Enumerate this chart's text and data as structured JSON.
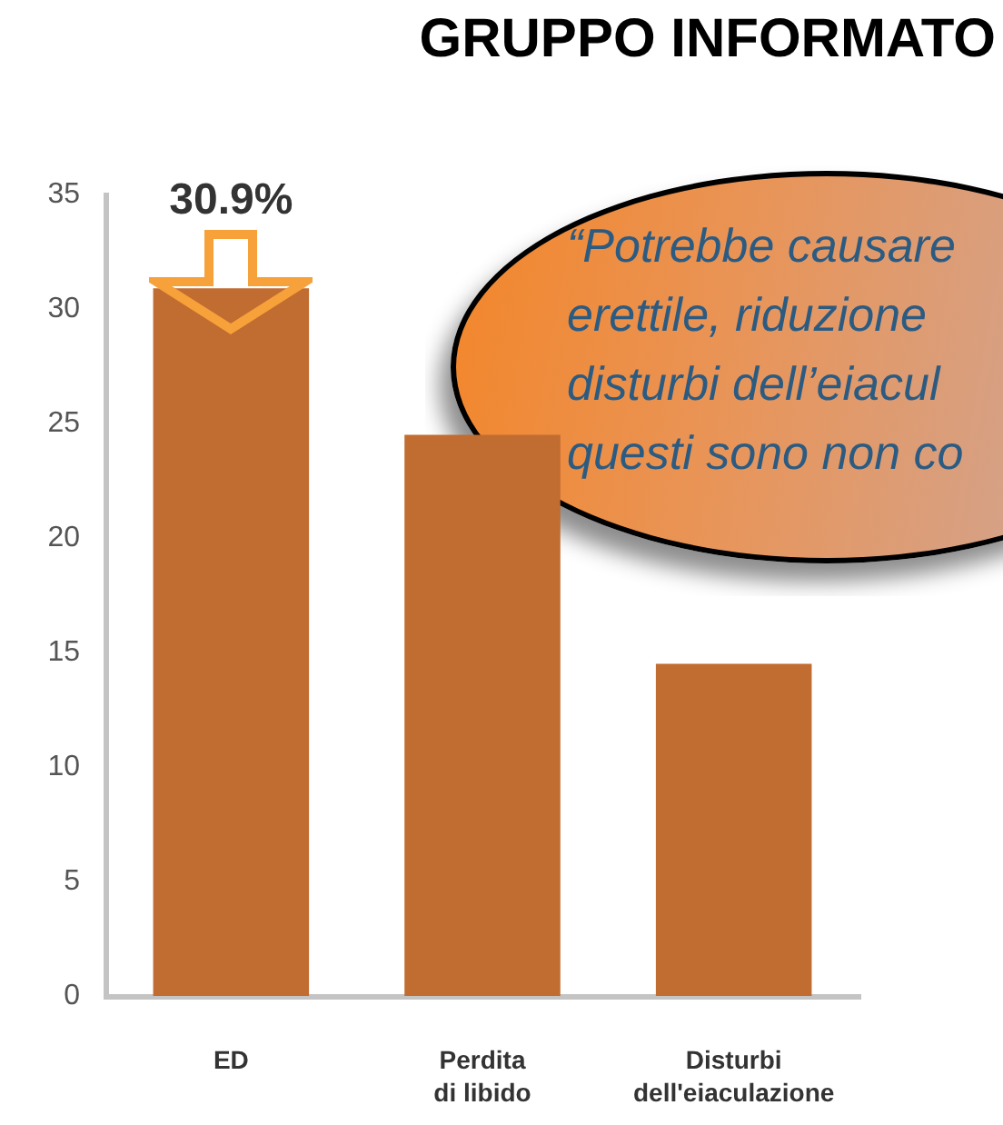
{
  "chart_data": {
    "type": "bar",
    "title": "GRUPPO INFORMATO",
    "categories": [
      "ED",
      "Perdita\ndi libido",
      "Disturbi\ndell'eiaculazione"
    ],
    "values": [
      30.9,
      24.5,
      14.5
    ],
    "color": "#c16c30",
    "value_labels": [
      "30.9%",
      null,
      null
    ],
    "ylim": [
      0,
      35
    ],
    "yticks": [
      0,
      5,
      10,
      15,
      20,
      25,
      30,
      35
    ],
    "annotations": [
      "“Potrebbe causare\nerettile, riduzione\ndisturbi dell’eiacul\nquesti sono non co"
    ]
  }
}
